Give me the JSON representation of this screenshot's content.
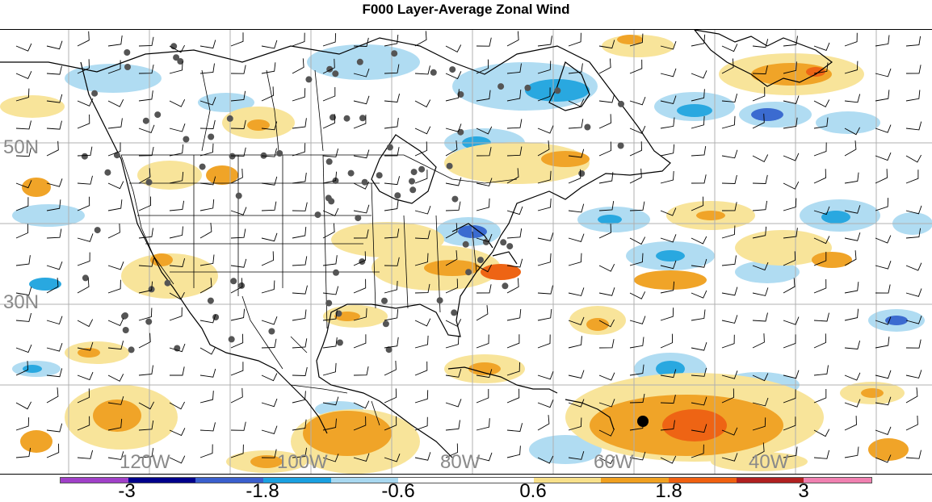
{
  "title": "F000 Layer-Average Zonal Wind",
  "lat_labels": [
    "50N",
    "30N"
  ],
  "lon_labels": [
    "120W",
    "100W",
    "80W",
    "60W",
    "40W"
  ],
  "colorbar": {
    "colors": [
      "#a040c8",
      "#00008b",
      "#3a5fcd",
      "#1aa0e0",
      "#a8d8f0",
      "#ffffff",
      "#ffffff",
      "#f8e08a",
      "#f0a020",
      "#f06010",
      "#b02020",
      "#f080b0"
    ],
    "labels": [
      "-3",
      "-1.8",
      "-0.6",
      "0.6",
      "1.8",
      "3"
    ]
  },
  "legend_colors": {
    "light_blue": "#b0dcf2",
    "mid_blue": "#29a8e0",
    "dark_blue": "#3b6bd0",
    "light_yellow": "#f8e49a",
    "orange": "#f0a428",
    "red_orange": "#ee6414"
  }
}
